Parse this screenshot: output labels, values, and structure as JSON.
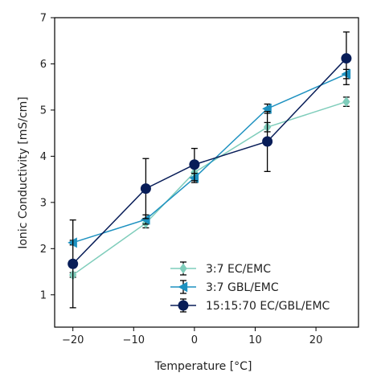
{
  "chart_data": {
    "type": "line",
    "xlabel": "Temperature [°C]",
    "ylabel": "Ionic Conductivity [mS/cm]",
    "xlim": [
      -23,
      27
    ],
    "ylim": [
      0.3,
      7
    ],
    "xticks": [
      -20,
      -10,
      0,
      10,
      20
    ],
    "xtick_labels": [
      "−20",
      "−10",
      "0",
      "10",
      "20"
    ],
    "yticks": [
      1,
      2,
      3,
      4,
      5,
      6,
      7
    ],
    "ytick_labels": [
      "1",
      "2",
      "3",
      "4",
      "5",
      "6",
      "7"
    ],
    "legend_position": "lower-right",
    "grid": false,
    "series": [
      {
        "name": "3:7 EC/EMC",
        "color": "#7fcdbb",
        "marker": "diamond",
        "x": [
          -20,
          -8,
          0,
          12,
          25
        ],
        "y": [
          1.43,
          2.55,
          3.65,
          4.63,
          5.18
        ],
        "err": [
          0.05,
          0.1,
          0.1,
          0.1,
          0.1
        ]
      },
      {
        "name": "3:7 GBL/EMC",
        "color": "#1d91c0",
        "marker": "triangle-left",
        "x": [
          -20,
          -8,
          0,
          12,
          25
        ],
        "y": [
          2.13,
          2.63,
          3.53,
          5.03,
          5.78
        ],
        "err": [
          0.05,
          0.1,
          0.1,
          0.1,
          0.1
        ]
      },
      {
        "name": "15:15:70 EC/GBL/EMC",
        "color": "#081d58",
        "marker": "circle",
        "x": [
          -20,
          -8,
          0,
          12,
          25
        ],
        "y": [
          1.67,
          3.3,
          3.82,
          4.32,
          6.12
        ],
        "err": [
          0.95,
          0.65,
          0.35,
          0.65,
          0.57
        ]
      }
    ]
  }
}
